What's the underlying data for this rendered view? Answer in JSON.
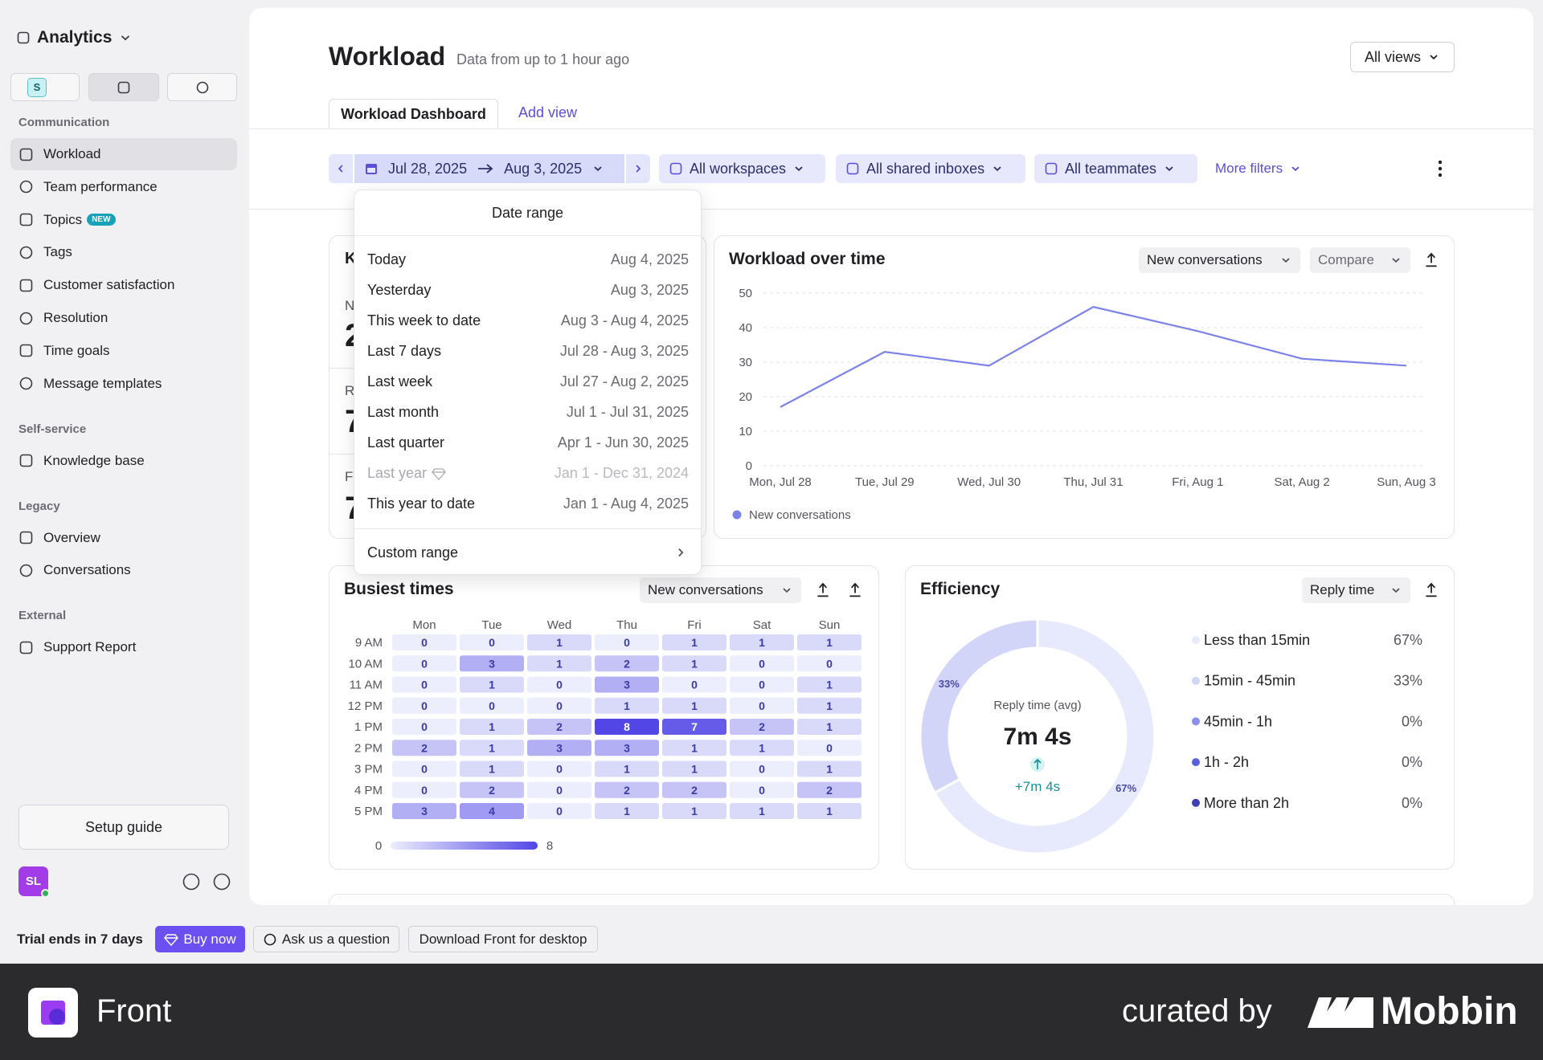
{
  "sidebar": {
    "app": "Analytics",
    "workspace_badge": "S",
    "new_badge": "NEW",
    "sections": [
      {
        "title": "Communication",
        "items": [
          "Workload",
          "Team performance",
          "Topics",
          "Tags",
          "Customer satisfaction",
          "Resolution",
          "Time goals",
          "Message templates"
        ]
      },
      {
        "title": "Self-service",
        "items": [
          "Knowledge base"
        ]
      },
      {
        "title": "Legacy",
        "items": [
          "Overview",
          "Conversations"
        ]
      },
      {
        "title": "External",
        "items": [
          "Support Report"
        ]
      }
    ],
    "setup_guide": "Setup guide",
    "avatar": "SL"
  },
  "header": {
    "title": "Workload",
    "subtitle": "Data from up to 1 hour ago",
    "views": "All views",
    "tabs": [
      "Workload Dashboard",
      "Add view"
    ]
  },
  "filters": {
    "date_from": "Jul 28, 2025",
    "date_to": "Aug 3, 2025",
    "workspaces": "All workspaces",
    "inboxes": "All shared inboxes",
    "teammates": "All teammates",
    "more": "More filters"
  },
  "date_menu": {
    "title": "Date range",
    "options": [
      {
        "label": "Today",
        "range": "Aug 4, 2025"
      },
      {
        "label": "Yesterday",
        "range": "Aug 3, 2025"
      },
      {
        "label": "This week to date",
        "range": "Aug 3 - Aug 4, 2025"
      },
      {
        "label": "Last 7 days",
        "range": "Jul 28 - Aug 3, 2025"
      },
      {
        "label": "Last week",
        "range": "Jul 27 - Aug 2, 2025"
      },
      {
        "label": "Last month",
        "range": "Jul 1 - Jul 31, 2025"
      },
      {
        "label": "Last quarter",
        "range": "Apr 1 - Jun 30, 2025"
      },
      {
        "label": "Last year",
        "range": "Jan 1 - Dec 31, 2024",
        "locked": true
      },
      {
        "label": "This year to date",
        "range": "Jan 1 - Aug 4, 2025"
      }
    ],
    "custom": "Custom range"
  },
  "kpi_card": {
    "texts": [
      "K",
      "N",
      "2",
      "R",
      "7",
      "F",
      "7"
    ]
  },
  "chart_data": [
    {
      "type": "line",
      "title": "Workload over time",
      "controls": [
        "New conversations",
        "Compare"
      ],
      "categories": [
        "Mon, Jul 28",
        "Tue, Jul 29",
        "Wed, Jul 30",
        "Thu, Jul 31",
        "Fri, Aug 1",
        "Sat, Aug 2",
        "Sun, Aug 3"
      ],
      "series": [
        {
          "name": "New conversations",
          "color": "#7b82e8",
          "values": [
            17,
            33,
            29,
            46,
            39,
            31,
            29
          ]
        }
      ],
      "ylim": [
        0,
        50
      ],
      "yticks": [
        0,
        10,
        20,
        30,
        40,
        50
      ],
      "grid": true
    },
    {
      "type": "heatmap",
      "title": "Busiest times",
      "controls": [
        "New conversations"
      ],
      "categories": [
        "Mon",
        "Tue",
        "Wed",
        "Thu",
        "Fri",
        "Sat",
        "Sun"
      ],
      "rows": [
        "9 AM",
        "10 AM",
        "11 AM",
        "12 PM",
        "1 PM",
        "2 PM",
        "3 PM",
        "4 PM",
        "5 PM"
      ],
      "values": [
        [
          0,
          0,
          1,
          0,
          1,
          1,
          1
        ],
        [
          0,
          3,
          1,
          2,
          1,
          0,
          0
        ],
        [
          0,
          1,
          0,
          3,
          0,
          0,
          1
        ],
        [
          0,
          0,
          0,
          1,
          1,
          0,
          1
        ],
        [
          0,
          1,
          2,
          8,
          7,
          2,
          1
        ],
        [
          2,
          1,
          3,
          3,
          1,
          1,
          0
        ],
        [
          0,
          1,
          0,
          1,
          1,
          0,
          1
        ],
        [
          0,
          2,
          0,
          2,
          2,
          0,
          2
        ],
        [
          3,
          4,
          0,
          1,
          1,
          1,
          1
        ]
      ],
      "zlim": [
        0,
        8
      ],
      "zticks": [
        0,
        8
      ],
      "colors": [
        "#eceefd",
        "#5346e6"
      ]
    },
    {
      "type": "pie",
      "donut": true,
      "title": "Efficiency",
      "controls": [
        "Reply time"
      ],
      "center_label": "Reply time (avg)",
      "center_value": "7m 4s",
      "change": "+7m 4s",
      "categories": [
        "Less than 15min",
        "15min - 45min",
        "45min - 1h",
        "1h - 2h",
        "More than 2h"
      ],
      "values": [
        67,
        33,
        0,
        0,
        0
      ],
      "value_labels": [
        "67%",
        "33%",
        "0%",
        "0%",
        "0%"
      ],
      "colors": [
        "#e7e9fc",
        "#d2d5f8",
        "#8a8fec",
        "#5a5ed9",
        "#3f3fb5"
      ]
    }
  ],
  "trial_bar": {
    "trial": "Trial ends in 7 days",
    "buy": "Buy now",
    "ask": "Ask us a question",
    "download": "Download Front for desktop"
  },
  "branding": {
    "app": "Front",
    "curated": "curated by",
    "mobbin": "Mobbin"
  }
}
